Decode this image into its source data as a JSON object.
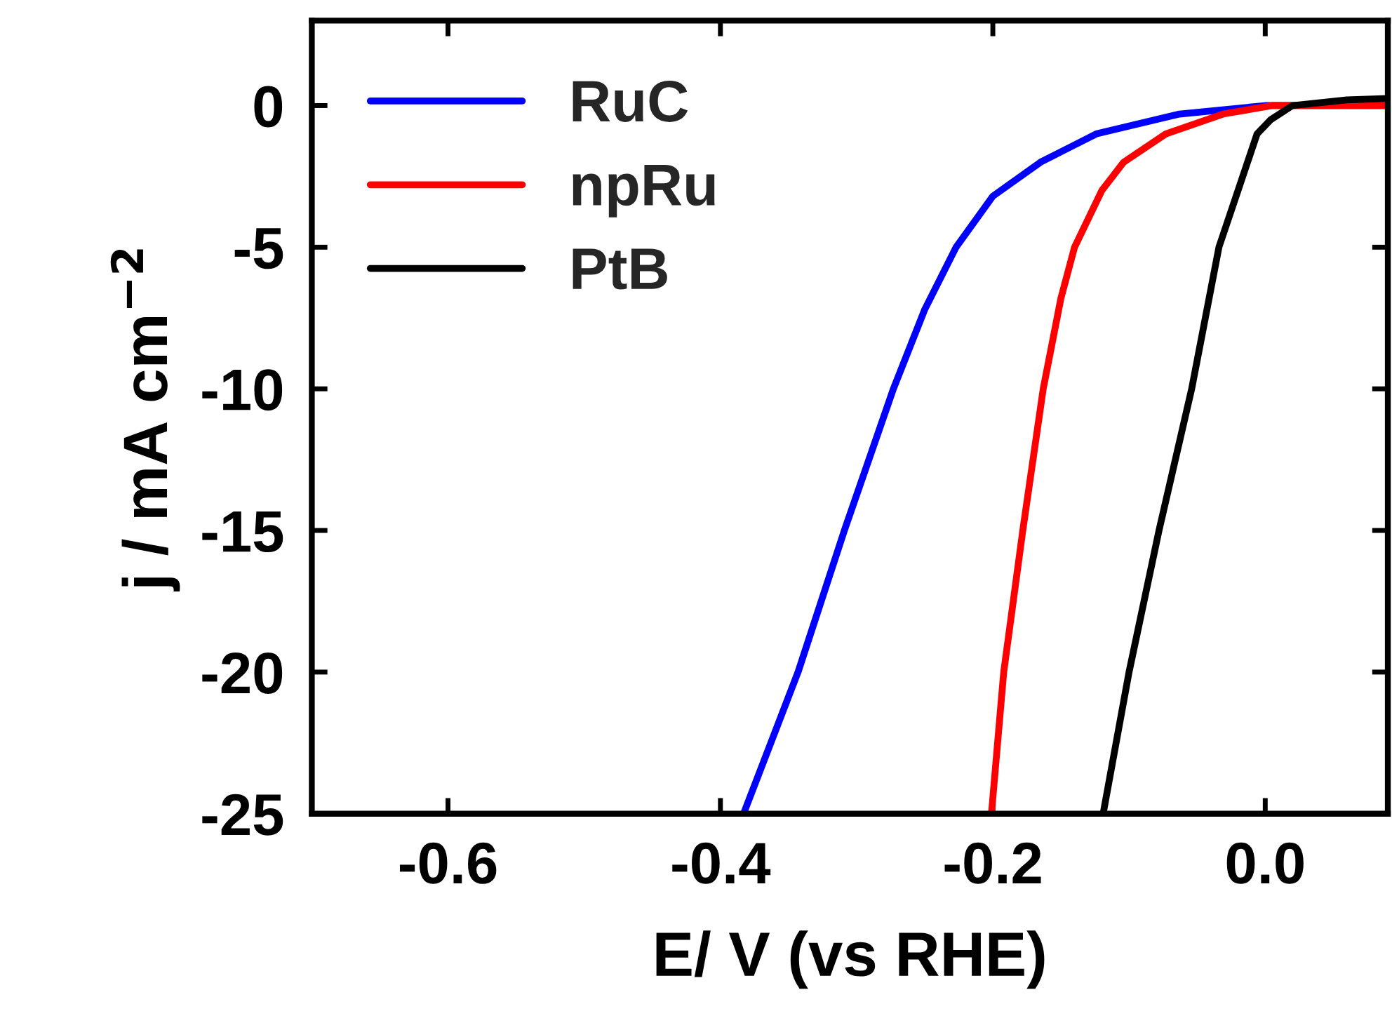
{
  "chart_data": {
    "type": "line",
    "xlabel": "E/ V (vs RHE)",
    "ylabel": "j / mA cm$^{−2}$",
    "xlim": [
      -0.7,
      0.09
    ],
    "ylim": [
      -25,
      3
    ],
    "xticks": [
      -0.6,
      -0.4,
      -0.2,
      {
        "value": 0.0,
        "label": "0.0"
      }
    ],
    "yticks": [
      0,
      -5,
      -10,
      -15,
      -20,
      -25
    ],
    "legend": "top left",
    "grid": false,
    "series": [
      {
        "name": "RuC",
        "color": "#0000ff",
        "x": [
          -0.383,
          -0.343,
          -0.309,
          -0.273,
          -0.25,
          -0.227,
          -0.2,
          -0.165,
          -0.124,
          -0.063,
          0.0,
          0.09
        ],
        "values": [
          -25,
          -20,
          -15,
          -10,
          -7.2,
          -5,
          -3.2,
          -2,
          -1,
          -0.3,
          0,
          0
        ]
      },
      {
        "name": "npRu",
        "color": "#ff0000",
        "x": [
          -0.201,
          -0.192,
          -0.178,
          -0.163,
          -0.15,
          -0.14,
          -0.12,
          -0.104,
          -0.073,
          -0.031,
          0.005,
          0.09
        ],
        "values": [
          -25,
          -20,
          -15,
          -10,
          -6.8,
          -5,
          -3,
          -2,
          -1,
          -0.3,
          0,
          0
        ]
      },
      {
        "name": "PtB",
        "color": "#000000",
        "x": [
          -0.119,
          -0.1,
          -0.078,
          -0.054,
          -0.034,
          -0.006,
          0.004,
          0.02,
          0.06,
          0.09
        ],
        "values": [
          -25,
          -20,
          -15,
          -10,
          -5,
          -1,
          -0.5,
          0,
          0.2,
          0.25
        ]
      }
    ]
  }
}
